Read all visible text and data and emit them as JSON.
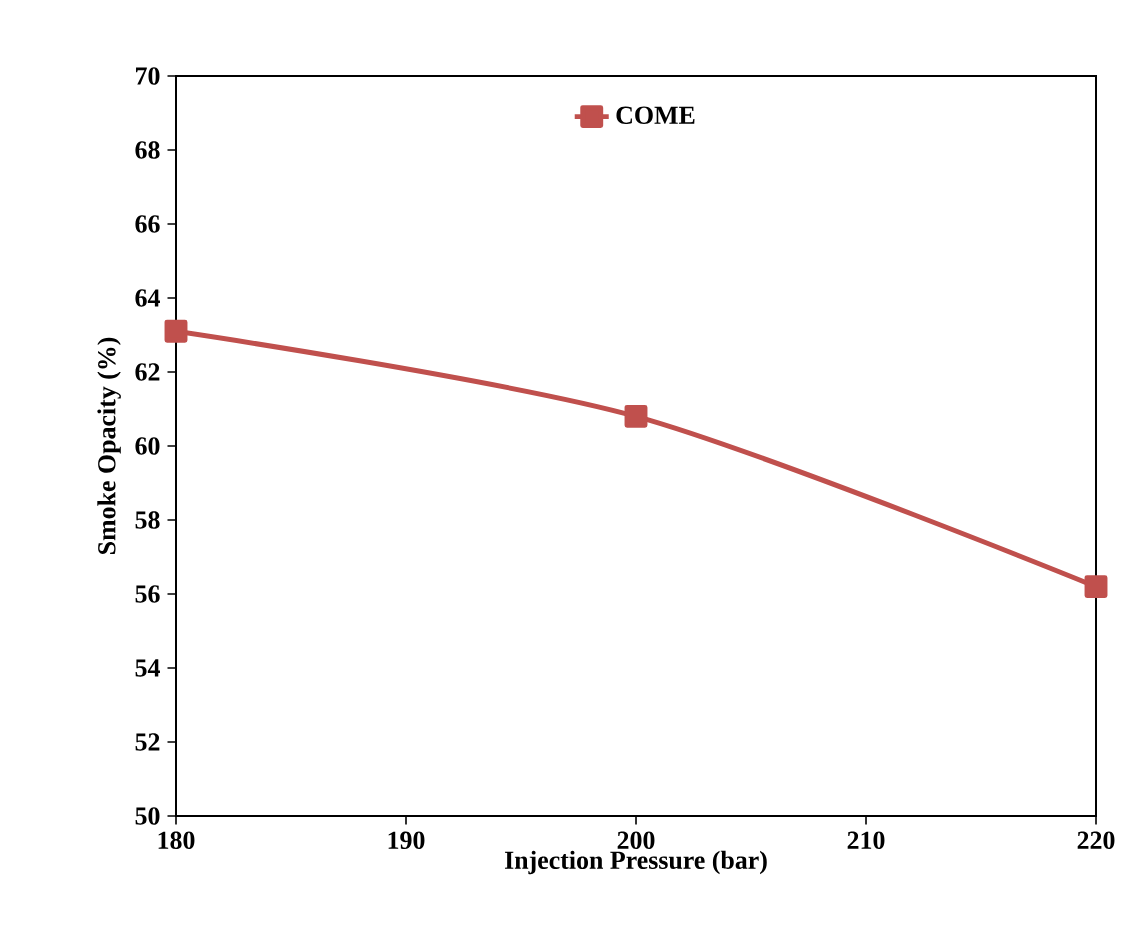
{
  "chart_data": {
    "type": "line",
    "xlabel": "Injection Pressure (bar)",
    "ylabel": "Smoke Opacity (%)",
    "x": [
      180,
      200,
      220
    ],
    "series": [
      {
        "name": "COME",
        "color": "#c0504d",
        "values": [
          63.1,
          60.8,
          56.2
        ]
      }
    ],
    "xlim": [
      180,
      220
    ],
    "xticks": [
      180,
      190,
      200,
      210,
      220
    ],
    "ylim": [
      50,
      70
    ],
    "yticks": [
      50,
      52,
      54,
      56,
      58,
      60,
      62,
      64,
      66,
      68,
      70
    ],
    "legend": "top",
    "marker": "square",
    "grid": false
  }
}
